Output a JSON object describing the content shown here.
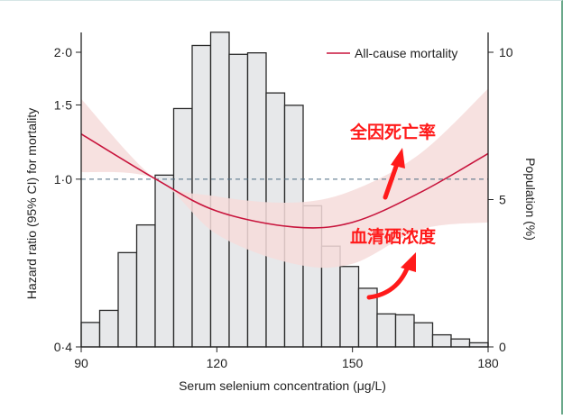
{
  "chart_data": {
    "type": "bar+line",
    "xlabel": "Serum selenium concentration (μg/L)",
    "ylabel_left": "Hazard ratio (95% CI) for mortality",
    "ylabel_right": "Population (%)",
    "xlim": [
      90,
      180
    ],
    "x_ticks": [
      90,
      120,
      150,
      180
    ],
    "x_tick_labels": [
      "90",
      "120",
      "150",
      "180"
    ],
    "y_left_scale": "log",
    "y_left_lim": [
      0.4,
      2.0
    ],
    "y_left_ticks": [
      0.4,
      1.0,
      1.5,
      2.0
    ],
    "y_left_tick_labels": [
      "0·4",
      "1·0",
      "1·5",
      "2·0"
    ],
    "y_right_lim": [
      0,
      10
    ],
    "y_right_ticks": [
      0,
      5,
      10
    ],
    "y_right_tick_labels": [
      "0",
      "5",
      "10"
    ],
    "reference_line": 1.0,
    "histogram": {
      "bin_range": [
        90,
        180
      ],
      "values": [
        0.83,
        1.24,
        3.2,
        4.14,
        5.83,
        8.09,
        10.23,
        10.68,
        9.93,
        9.98,
        8.62,
        8.2,
        4.79,
        3.42,
        2.73,
        1.99,
        1.12,
        1.09,
        0.82,
        0.41,
        0.27,
        0.14
      ]
    },
    "series": [
      {
        "name": "All-cause mortality",
        "x": [
          90,
          106.5,
          120,
          137,
          150,
          165,
          180
        ],
        "hr": [
          1.28,
          1.0,
          0.84,
          0.77,
          0.79,
          0.93,
          1.15
        ],
        "ci_lower": [
          1.04,
          1.0,
          0.74,
          0.63,
          0.63,
          0.76,
          0.79
        ],
        "ci_upper": [
          1.55,
          1.0,
          0.91,
          0.88,
          0.94,
          1.15,
          1.64
        ]
      }
    ],
    "legend_placement": "top-right",
    "colors": {
      "line": "#c8143c",
      "band": "#f6dcda",
      "bars": "#e7e8ea",
      "ref": "#4a6a80",
      "annotation": "#ff1a1a"
    },
    "annotations": [
      "全因死亡率",
      "血清硒浓度"
    ]
  }
}
